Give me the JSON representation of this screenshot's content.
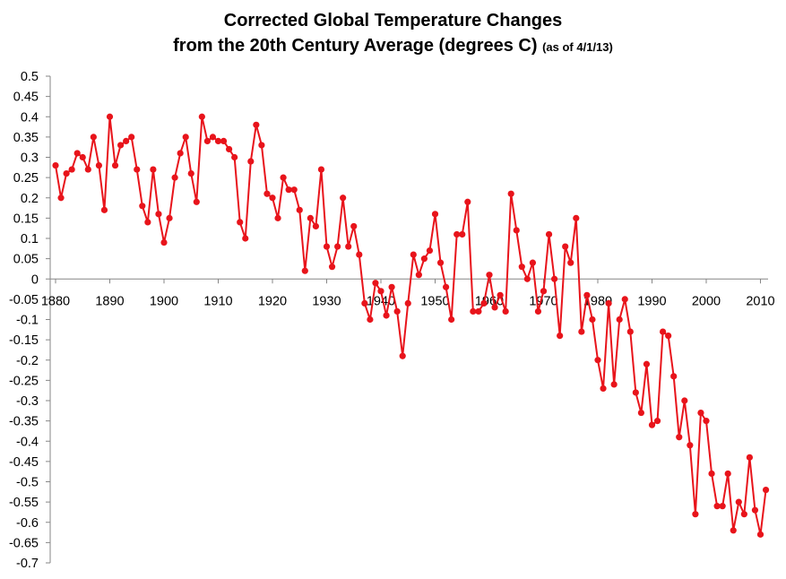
{
  "chart_data": {
    "type": "line",
    "title_line1": "Corrected Global Temperature Changes",
    "title_line2": "from the 20th Century Average (degrees C)",
    "title_note": "(as of 4/1/13)",
    "xlabel": "",
    "ylabel": "",
    "xlim": [
      1880,
      2012
    ],
    "ylim": [
      -0.7,
      0.5
    ],
    "x_ticks": [
      "1880",
      "1890",
      "1900",
      "1910",
      "1920",
      "1930",
      "1940",
      "1950",
      "1960",
      "1970",
      "1980",
      "1990",
      "2000",
      "2010"
    ],
    "y_ticks": [
      "0.5",
      "0.45",
      "0.4",
      "0.35",
      "0.3",
      "0.25",
      "0.2",
      "0.15",
      "0.1",
      "0.05",
      "0",
      "-0.05",
      "-0.1",
      "-0.15",
      "-0.2",
      "-0.25",
      "-0.3",
      "-0.35",
      "-0.4",
      "-0.45",
      "-0.5",
      "-0.55",
      "-0.6",
      "-0.65",
      "-0.7"
    ],
    "grid": false,
    "legend": "none",
    "series_color": "#e8141b",
    "x_start": 1880,
    "x_step": 1,
    "values": [
      0.28,
      0.2,
      0.26,
      0.27,
      0.31,
      0.3,
      0.27,
      0.35,
      0.28,
      0.17,
      0.4,
      0.28,
      0.33,
      0.34,
      0.35,
      0.27,
      0.18,
      0.14,
      0.27,
      0.16,
      0.09,
      0.15,
      0.25,
      0.31,
      0.35,
      0.26,
      0.19,
      0.4,
      0.34,
      0.35,
      0.34,
      0.34,
      0.32,
      0.3,
      0.14,
      0.1,
      0.29,
      0.38,
      0.33,
      0.21,
      0.2,
      0.15,
      0.25,
      0.22,
      0.22,
      0.17,
      0.02,
      0.15,
      0.13,
      0.27,
      0.08,
      0.03,
      0.08,
      0.2,
      0.08,
      0.13,
      0.06,
      -0.06,
      -0.1,
      -0.01,
      -0.03,
      -0.09,
      -0.02,
      -0.08,
      -0.19,
      -0.06,
      0.06,
      0.01,
      0.05,
      0.07,
      0.16,
      0.04,
      -0.02,
      -0.1,
      0.11,
      0.11,
      0.19,
      -0.08,
      -0.08,
      -0.06,
      0.01,
      -0.07,
      -0.04,
      -0.08,
      0.21,
      0.12,
      0.03,
      0.0,
      0.04,
      -0.08,
      -0.03,
      0.11,
      0.0,
      -0.14,
      0.08,
      0.04,
      0.15,
      -0.13,
      -0.04,
      -0.1,
      -0.2,
      -0.27,
      -0.06,
      -0.26,
      -0.1,
      -0.05,
      -0.13,
      -0.28,
      -0.33,
      -0.21,
      -0.36,
      -0.35,
      -0.13,
      -0.14,
      -0.24,
      -0.39,
      -0.3,
      -0.41,
      -0.58,
      -0.33,
      -0.35,
      -0.48,
      -0.56,
      -0.56,
      -0.48,
      -0.62,
      -0.55,
      -0.58,
      -0.44,
      -0.57,
      -0.63,
      -0.52
    ]
  }
}
